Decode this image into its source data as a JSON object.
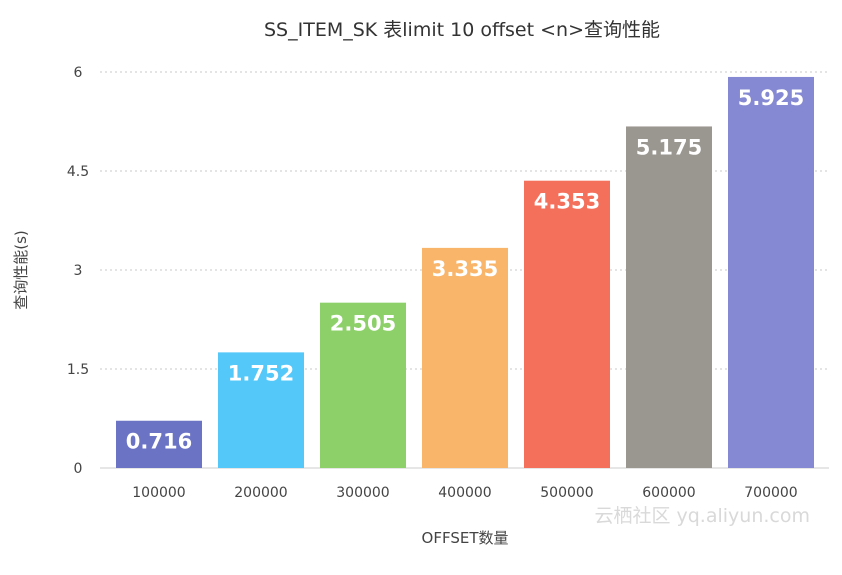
{
  "chart_data": {
    "type": "bar",
    "title": "SS_ITEM_SK 表limit 10 offset <n>查询性能",
    "xlabel": "OFFSET数量",
    "ylabel": "查询性能(s)",
    "categories": [
      "100000",
      "200000",
      "300000",
      "400000",
      "500000",
      "600000",
      "700000"
    ],
    "values": [
      0.716,
      1.752,
      2.505,
      3.335,
      4.353,
      5.175,
      5.925
    ],
    "value_labels": [
      "0.716",
      "1.752",
      "2.505",
      "3.335",
      "4.353",
      "5.175",
      "5.925"
    ],
    "colors": [
      "#6b73c4",
      "#55c8fa",
      "#8dd06a",
      "#f9b56a",
      "#f5705b",
      "#9a9690",
      "#8588d2"
    ],
    "ylim": [
      0,
      6
    ],
    "yticks": [
      "0",
      "1.5",
      "3",
      "4.5",
      "6"
    ],
    "ytick_values": [
      0,
      1.5,
      3,
      4.5,
      6
    ],
    "grid": true,
    "legend": "none"
  },
  "watermark": "云栖社区 yq.aliyun.com"
}
